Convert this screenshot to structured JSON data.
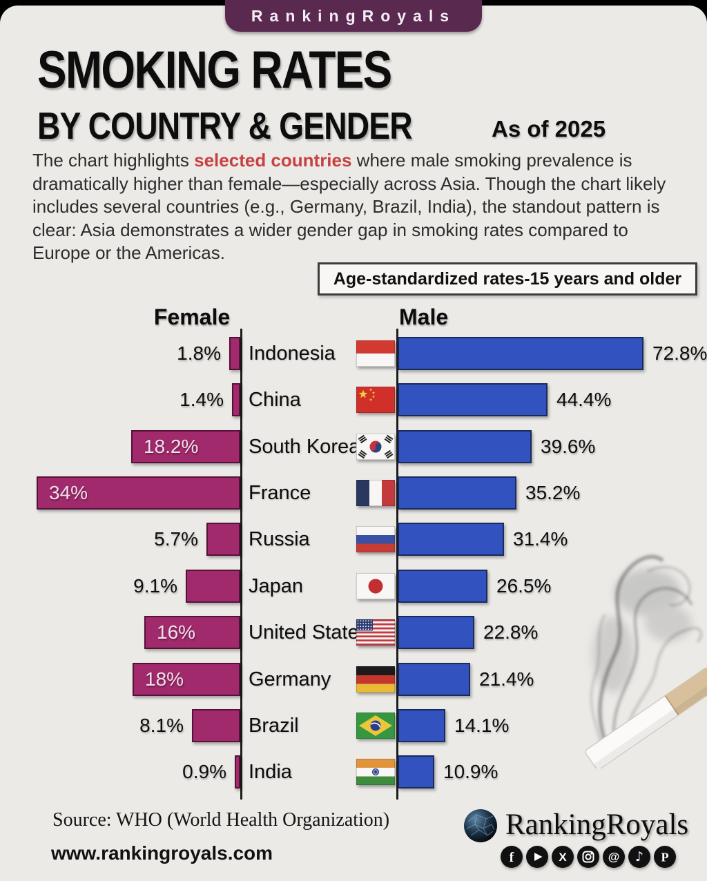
{
  "badge": "RankingRoyals",
  "title_line1": "SMOKING RATES",
  "title_line2": "BY COUNTRY & GENDER",
  "as_of": "As of 2025",
  "description": {
    "before": "The chart highlights ",
    "highlight": "selected countries",
    "after": " where male smoking prevalence is dramatically higher than female—especially across Asia. Though the chart likely includes several countries (e.g., Germany, Brazil, India), the standout pattern is clear: Asia demonstrates a wider gender gap in smoking rates compared to Europe or the Americas."
  },
  "note_box": "Age-standardized rates-15 years and older",
  "colors": {
    "background": "#ebeae7",
    "badge_bg": "#5a2950",
    "female_bar": "#a02a6c",
    "male_bar": "#3253bf",
    "highlight_red": "#c84141"
  },
  "chart_data": {
    "type": "bar",
    "orientation": "diverging-horizontal",
    "unit": "%",
    "note": "Age-standardized rates-15 years and older",
    "female_header": "Female",
    "male_header": "Male",
    "series": [
      {
        "name": "Female",
        "color": "#a02a6c"
      },
      {
        "name": "Male",
        "color": "#3253bf"
      }
    ],
    "categories": [
      "Indonesia",
      "China",
      "South Korea",
      "France",
      "Russia",
      "Japan",
      "United States",
      "Germany",
      "Brazil",
      "India"
    ],
    "rows": [
      {
        "country": "Indonesia",
        "flag": "indonesia",
        "female": 1.8,
        "female_label": "1.8%",
        "male": 72.8,
        "male_label": "72.8%"
      },
      {
        "country": "China",
        "flag": "china",
        "female": 1.4,
        "female_label": "1.4%",
        "male": 44.4,
        "male_label": "44.4%"
      },
      {
        "country": "South Korea",
        "flag": "south-korea",
        "female": 18.2,
        "female_label": "18.2%",
        "male": 39.6,
        "male_label": "39.6%"
      },
      {
        "country": "France",
        "flag": "france",
        "female": 34,
        "female_label": "34%",
        "male": 35.2,
        "male_label": "35.2%"
      },
      {
        "country": "Russia",
        "flag": "russia",
        "female": 5.7,
        "female_label": "5.7%",
        "male": 31.4,
        "male_label": "31.4%"
      },
      {
        "country": "Japan",
        "flag": "japan",
        "female": 9.1,
        "female_label": "9.1%",
        "male": 26.5,
        "male_label": "26.5%"
      },
      {
        "country": "United States",
        "flag": "united-states",
        "female": 16,
        "female_label": "16%",
        "male": 22.8,
        "male_label": "22.8%"
      },
      {
        "country": "Germany",
        "flag": "germany",
        "female": 18,
        "female_label": "18%",
        "male": 21.4,
        "male_label": "21.4%"
      },
      {
        "country": "Brazil",
        "flag": "brazil",
        "female": 8.1,
        "female_label": "8.1%",
        "male": 14.1,
        "male_label": "14.1%"
      },
      {
        "country": "India",
        "flag": "india",
        "female": 0.9,
        "female_label": "0.9%",
        "male": 10.9,
        "male_label": "10.9%"
      }
    ],
    "female_axis_max": 34,
    "male_axis_max": 72.8,
    "value_labels": "at bar ends",
    "grid": false
  },
  "footer": {
    "source": "Source: WHO (World Health Organization)",
    "website": "www.rankingroyals.com",
    "brand": "RankingRoyals",
    "social": [
      "facebook",
      "youtube",
      "x",
      "instagram",
      "threads",
      "tiktok",
      "pinterest"
    ]
  }
}
